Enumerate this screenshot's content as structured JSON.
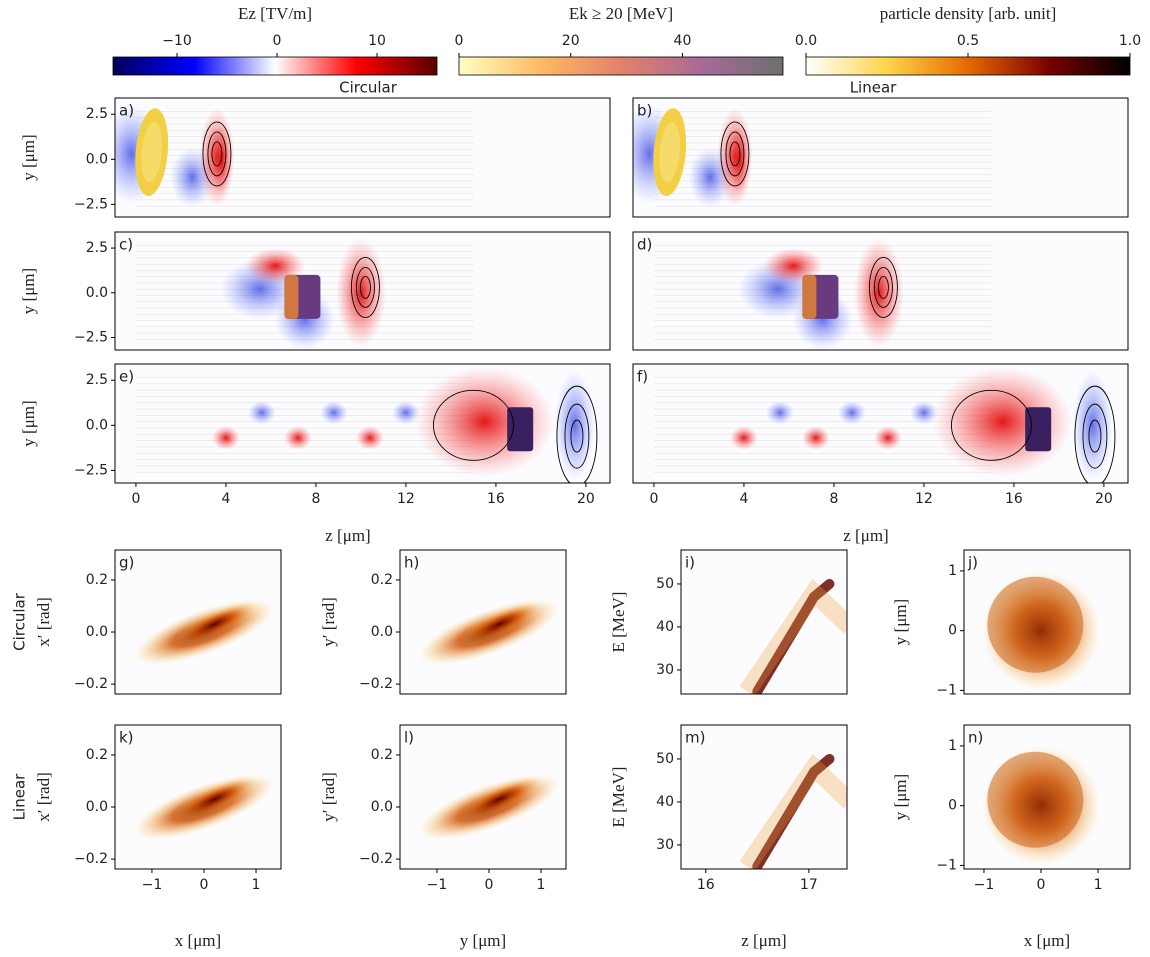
{
  "chart_data": [
    {
      "type": "colorbar",
      "label": "Ez [TV/m]",
      "xlim": [
        -16.4,
        16
      ],
      "xticks": [
        {
          "value": -10,
          "label": "−10"
        },
        0,
        10
      ],
      "colormap": [
        "#00005a",
        "#0000ff",
        "#ffffff",
        "#ff0000",
        "#5a0000"
      ]
    },
    {
      "type": "colorbar",
      "label": "Ek ≥ 20 [MeV]",
      "xlim": [
        0,
        58
      ],
      "xticks": [
        0,
        20,
        40
      ],
      "colormap": [
        "#ffffc4",
        "#fdbb63",
        "#e3816a",
        "#a86a98",
        "#6e6e6e"
      ]
    },
    {
      "type": "colorbar",
      "label": "particle density [arb. unit]",
      "xlim": [
        0,
        1
      ],
      "xticks": [
        {
          "value": 0,
          "label": "0.0"
        },
        0.5,
        {
          "value": 1,
          "label": "1.0"
        }
      ],
      "colormap": [
        "#ffffff",
        "#ffd54a",
        "#e56a00",
        "#7a0000",
        "#000000"
      ]
    },
    {
      "type": "heatmap",
      "title": "Circular",
      "panel_label": "a)",
      "xlim": [
        -0.93,
        21.07
      ],
      "ylim": [
        -3.2,
        3.4
      ],
      "yticks": [
        2.5,
        {
          "value": 0,
          "label": "0.0"
        },
        {
          "value": -2.5,
          "label": "−2.5"
        }
      ],
      "ylabel": "y [μm]"
    },
    {
      "type": "heatmap",
      "title": "Linear",
      "panel_label": "b)",
      "xlim": [
        -0.93,
        21.07
      ],
      "ylim": [
        -3.2,
        3.4
      ]
    },
    {
      "type": "heatmap",
      "panel_label": "c)",
      "xlim": [
        -0.93,
        21.07
      ],
      "ylim": [
        -3.2,
        3.4
      ],
      "yticks": [
        2.5,
        {
          "value": 0,
          "label": "0.0"
        },
        {
          "value": -2.5,
          "label": "−2.5"
        }
      ],
      "ylabel": "y [μm]"
    },
    {
      "type": "heatmap",
      "panel_label": "d)",
      "xlim": [
        -0.93,
        21.07
      ],
      "ylim": [
        -3.2,
        3.4
      ]
    },
    {
      "type": "heatmap",
      "panel_label": "e)",
      "xlim": [
        -0.93,
        21.07
      ],
      "ylim": [
        -3.2,
        3.4
      ],
      "yticks": [
        2.5,
        {
          "value": 0,
          "label": "0.0"
        },
        {
          "value": -2.5,
          "label": "−2.5"
        }
      ],
      "xticks": [
        0,
        4,
        8,
        12,
        16,
        20
      ],
      "ylabel": "y [μm]",
      "xlabel": "z [μm]"
    },
    {
      "type": "heatmap",
      "panel_label": "f)",
      "xlim": [
        -0.93,
        21.07
      ],
      "ylim": [
        -3.2,
        3.4
      ],
      "xticks": [
        0,
        4,
        8,
        12,
        16,
        20
      ],
      "xlabel": "z [μm]"
    },
    {
      "type": "heatmap",
      "row_label": "Circular",
      "panel_label": "g)",
      "xlim": [
        -1.71,
        1.48
      ],
      "ylim": [
        -0.238,
        0.315
      ],
      "yticks": [
        0.2,
        {
          "value": 0,
          "label": "0.0"
        },
        {
          "value": -0.2,
          "label": "−0.2"
        }
      ],
      "ylabel": "x′ [rad]"
    },
    {
      "type": "heatmap",
      "panel_label": "h)",
      "xlim": [
        -1.71,
        1.48
      ],
      "ylim": [
        -0.238,
        0.315
      ],
      "yticks": [
        0.2,
        {
          "value": 0,
          "label": "0.0"
        },
        {
          "value": -0.2,
          "label": "−0.2"
        }
      ],
      "ylabel": "y′ [rad]"
    },
    {
      "type": "heatmap",
      "panel_label": "i)",
      "xlim": [
        15.76,
        17.37
      ],
      "ylim": [
        24.4,
        57.9
      ],
      "yticks": [
        50,
        40,
        30
      ],
      "ylabel": "E [MeV]"
    },
    {
      "type": "heatmap",
      "panel_label": "j)",
      "xlim": [
        -1.35,
        1.56
      ],
      "ylim": [
        -1.06,
        1.35
      ],
      "yticks": [
        1,
        0,
        {
          "value": -1,
          "label": "−1"
        }
      ],
      "ylabel": "y [μm]"
    },
    {
      "type": "heatmap",
      "row_label": "Linear",
      "panel_label": "k)",
      "xlim": [
        -1.71,
        1.48
      ],
      "ylim": [
        -0.238,
        0.315
      ],
      "yticks": [
        0.2,
        {
          "value": 0,
          "label": "0.0"
        },
        {
          "value": -0.2,
          "label": "−0.2"
        }
      ],
      "xticks": [
        {
          "value": -1,
          "label": "−1"
        },
        0,
        1
      ],
      "ylabel": "x′ [rad]",
      "xlabel": "x [μm]"
    },
    {
      "type": "heatmap",
      "panel_label": "l)",
      "xlim": [
        -1.71,
        1.48
      ],
      "ylim": [
        -0.238,
        0.315
      ],
      "yticks": [
        0.2,
        {
          "value": 0,
          "label": "0.0"
        },
        {
          "value": -0.2,
          "label": "−0.2"
        }
      ],
      "xticks": [
        {
          "value": -1,
          "label": "−1"
        },
        0,
        1
      ],
      "ylabel": "y′ [rad]",
      "xlabel": "y [μm]"
    },
    {
      "type": "heatmap",
      "panel_label": "m)",
      "xlim": [
        15.76,
        17.37
      ],
      "ylim": [
        24.4,
        57.9
      ],
      "yticks": [
        50,
        40,
        30
      ],
      "xticks": [
        16,
        17
      ],
      "ylabel": "E [MeV]",
      "xlabel": "z [μm]"
    },
    {
      "type": "heatmap",
      "panel_label": "n)",
      "xlim": [
        -1.35,
        1.56
      ],
      "ylim": [
        -1.06,
        1.35
      ],
      "yticks": [
        1,
        0,
        {
          "value": -1,
          "label": "−1"
        }
      ],
      "xticks": [
        {
          "value": -1,
          "label": "−1"
        },
        0,
        1
      ],
      "ylabel": "y [μm]",
      "xlabel": "x [μm]"
    }
  ]
}
